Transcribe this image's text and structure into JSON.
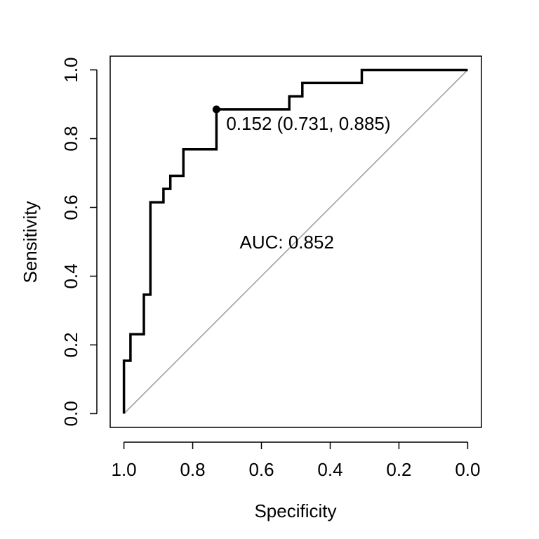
{
  "chart_data": {
    "type": "line",
    "title": "",
    "xlabel": "Specificity",
    "ylabel": "Sensitivity",
    "xlim": [
      1.04,
      -0.04
    ],
    "ylim": [
      -0.04,
      1.04
    ],
    "x_reversed": true,
    "grid": false,
    "legend": "none",
    "x_ticks": [
      1.0,
      0.8,
      0.6,
      0.4,
      0.2,
      0.0
    ],
    "x_tick_labels": [
      "1.0",
      "0.8",
      "0.6",
      "0.4",
      "0.2",
      "0.0"
    ],
    "y_ticks": [
      0.0,
      0.2,
      0.4,
      0.6,
      0.8,
      1.0
    ],
    "y_tick_labels": [
      "0.0",
      "0.2",
      "0.4",
      "0.6",
      "0.8",
      "1.0"
    ],
    "series": [
      {
        "color": "#000000",
        "points": [
          [
            1.0,
            0.0
          ],
          [
            1.0,
            0.154
          ],
          [
            0.981,
            0.154
          ],
          [
            0.981,
            0.231
          ],
          [
            0.942,
            0.231
          ],
          [
            0.942,
            0.346
          ],
          [
            0.923,
            0.346
          ],
          [
            0.923,
            0.615
          ],
          [
            0.885,
            0.615
          ],
          [
            0.885,
            0.654
          ],
          [
            0.865,
            0.654
          ],
          [
            0.865,
            0.692
          ],
          [
            0.827,
            0.692
          ],
          [
            0.827,
            0.769
          ],
          [
            0.731,
            0.769
          ],
          [
            0.731,
            0.885
          ],
          [
            0.519,
            0.885
          ],
          [
            0.519,
            0.923
          ],
          [
            0.481,
            0.923
          ],
          [
            0.481,
            0.962
          ],
          [
            0.308,
            0.962
          ],
          [
            0.308,
            1.0
          ],
          [
            0.0,
            1.0
          ]
        ]
      }
    ],
    "diagonal": {
      "from": [
        1.0,
        0.0
      ],
      "to": [
        0.0,
        1.0
      ],
      "color": "#999999"
    },
    "highlight_point": {
      "x": 0.731,
      "y": 0.885,
      "label": "0.152 (0.731, 0.885)"
    },
    "annotations": [
      {
        "text": "AUC: 0.852",
        "x": 0.5,
        "y": 0.47
      }
    ]
  }
}
